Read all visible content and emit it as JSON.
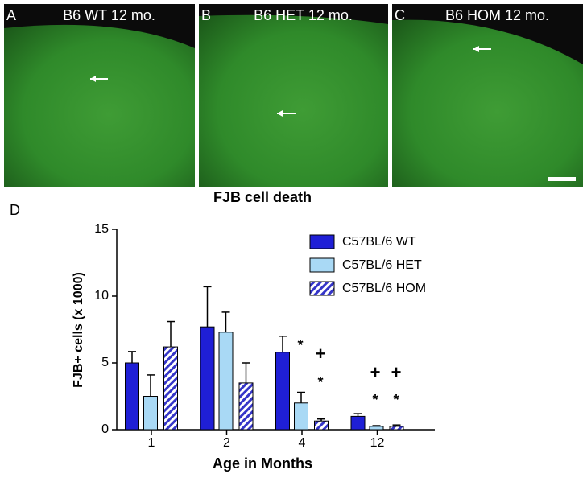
{
  "panels": [
    {
      "letter": "A",
      "label": "B6  WT 12 mo."
    },
    {
      "letter": "B",
      "label": "B6  HET 12 mo."
    },
    {
      "letter": "C",
      "label": "B6  HOM 12 mo."
    }
  ],
  "chart_data": {
    "type": "bar",
    "panel_letter": "D",
    "title": "FJB cell death",
    "x_label": "Age in Months",
    "y_label": "FJB+ cells (x 1000)",
    "categories": [
      "1",
      "2",
      "4",
      "12"
    ],
    "series": [
      {
        "name": "C57BL/6 WT",
        "color": "#1f1fd6",
        "hatch": false,
        "values": [
          5.0,
          7.7,
          5.8,
          1.0
        ],
        "errors": [
          0.85,
          3.0,
          1.2,
          0.2
        ]
      },
      {
        "name": "C57BL/6 HET",
        "color": "#a9d9f5",
        "hatch": false,
        "values": [
          2.5,
          7.3,
          2.0,
          0.25
        ],
        "errors": [
          1.6,
          1.5,
          0.8,
          0.05
        ]
      },
      {
        "name": "C57BL/6 HOM",
        "color": "#3535c8",
        "hatch": true,
        "values": [
          6.2,
          3.5,
          0.65,
          0.25
        ],
        "errors": [
          1.9,
          1.5,
          0.15,
          0.1
        ]
      }
    ],
    "ylim": [
      0,
      15
    ],
    "yticks": [
      0,
      5,
      10,
      15
    ],
    "annotations": [
      "*",
      "+",
      "*",
      "+",
      "+",
      "*",
      "*"
    ]
  }
}
